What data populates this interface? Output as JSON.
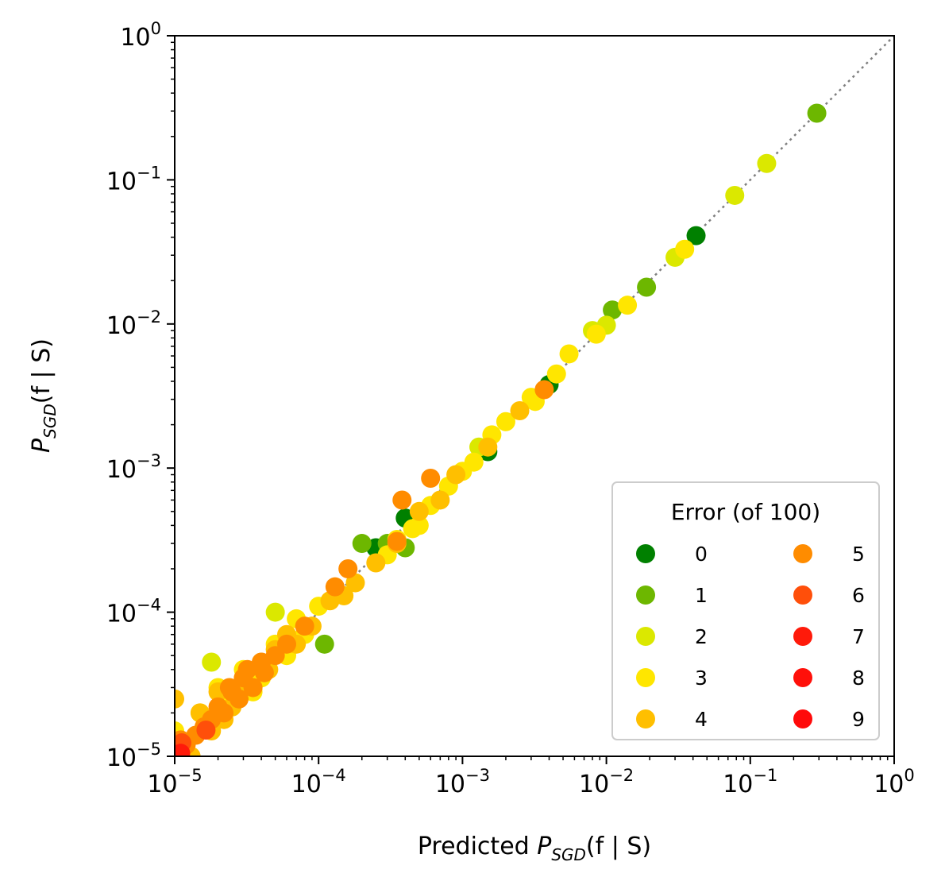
{
  "chart_data": {
    "type": "scatter",
    "xscale": "log",
    "yscale": "log",
    "xlim": [
      1e-05,
      1
    ],
    "ylim": [
      1e-05,
      1
    ],
    "xlabel": {
      "prefix": "Predicted ",
      "main": "P",
      "sub": "SGD",
      "suffix": "(f | S)"
    },
    "ylabel": {
      "prefix": "",
      "main": "P",
      "sub": "SGD",
      "suffix": "(f | S)"
    },
    "tick_labels": [
      {
        "base": "10",
        "exp": "−5"
      },
      {
        "base": "10",
        "exp": "−4"
      },
      {
        "base": "10",
        "exp": "−3"
      },
      {
        "base": "10",
        "exp": "−2"
      },
      {
        "base": "10",
        "exp": "−1"
      },
      {
        "base": "10",
        "exp": "0"
      }
    ],
    "reference_line": {
      "style": "dotted",
      "color": "#808080",
      "x": [
        1e-05,
        1
      ],
      "y": [
        1e-05,
        1
      ]
    },
    "legend": {
      "title": "Error (of 100)",
      "placement": "lower-right",
      "columns": 2,
      "entries": [
        {
          "label": "0",
          "color": "#008000"
        },
        {
          "label": "1",
          "color": "#6db700"
        },
        {
          "label": "2",
          "color": "#dbe800"
        },
        {
          "label": "3",
          "color": "#ffe600"
        },
        {
          "label": "4",
          "color": "#ffbf00"
        },
        {
          "label": "5",
          "color": "#ff8c00"
        },
        {
          "label": "6",
          "color": "#ff4f0a"
        },
        {
          "label": "7",
          "color": "#ff1a0a"
        },
        {
          "label": "8",
          "color": "#ff100a"
        },
        {
          "label": "9",
          "color": "#ff0a0a"
        }
      ]
    },
    "series": [
      {
        "label": "0",
        "x": [
          0.042,
          0.0015,
          0.0004,
          0.00025,
          0.004
        ],
        "y": [
          0.041,
          0.0013,
          0.00045,
          0.00028,
          0.0038
        ]
      },
      {
        "label": "1",
        "x": [
          0.29,
          0.019,
          0.011,
          0.0003,
          0.00011,
          0.0002,
          0.0004
        ],
        "y": [
          0.29,
          0.018,
          0.0125,
          0.0003,
          6e-05,
          0.0003,
          0.00028
        ]
      },
      {
        "label": "2",
        "x": [
          0.13,
          0.078,
          0.03,
          0.01,
          0.0013,
          5e-05,
          1.8e-05,
          0.008
        ],
        "y": [
          0.13,
          0.078,
          0.029,
          0.0098,
          0.0014,
          0.0001,
          4.5e-05,
          0.009
        ]
      },
      {
        "label": "3",
        "x": [
          0.035,
          0.014,
          0.0085,
          0.0055,
          0.0045,
          0.003,
          0.002,
          0.0016,
          0.001,
          0.0008,
          0.0006,
          0.0005,
          0.00035,
          0.0003,
          0.00015,
          0.0001,
          8e-05,
          6e-05,
          5e-05,
          4e-05,
          3e-05,
          2.5e-05,
          2e-05,
          1.5e-05,
          1e-05,
          0.0032,
          0.0012,
          0.00045,
          7e-05,
          3.5e-05
        ],
        "y": [
          0.033,
          0.0135,
          0.0085,
          0.0062,
          0.0045,
          0.0031,
          0.0021,
          0.0017,
          0.00095,
          0.00075,
          0.00055,
          0.0004,
          0.00032,
          0.00025,
          0.00013,
          0.00011,
          7e-05,
          5e-05,
          6e-05,
          3.5e-05,
          4e-05,
          2.5e-05,
          3e-05,
          2e-05,
          1.5e-05,
          0.0029,
          0.0011,
          0.00038,
          9e-05,
          2.8e-05
        ]
      },
      {
        "label": "4",
        "x": [
          0.0025,
          0.0015,
          0.0009,
          0.0007,
          0.0005,
          0.00035,
          0.00025,
          0.00018,
          0.00012,
          9e-05,
          7e-05,
          5e-05,
          4.5e-05,
          3.5e-05,
          3e-05,
          2.5e-05,
          2e-05,
          1.8e-05,
          1.5e-05,
          1.2e-05,
          1e-05,
          1.1e-05,
          1.3e-05,
          2.2e-05,
          2.8e-05,
          4e-05,
          6e-05,
          0.00015
        ],
        "y": [
          0.0025,
          0.0014,
          0.0009,
          0.0006,
          0.0005,
          0.0003,
          0.00022,
          0.00016,
          0.00012,
          8e-05,
          6e-05,
          5.5e-05,
          4e-05,
          3e-05,
          3.5e-05,
          2.2e-05,
          2.8e-05,
          1.5e-05,
          2e-05,
          1.2e-05,
          2.5e-05,
          1.1e-05,
          1e-05,
          1.8e-05,
          3e-05,
          4.5e-05,
          7e-05,
          0.00013
        ]
      },
      {
        "label": "5",
        "x": [
          0.0037,
          0.0006,
          0.00038,
          0.00035,
          0.00016,
          0.00013,
          8e-05,
          6e-05,
          5e-05,
          4e-05,
          3.5e-05,
          3e-05,
          2.8e-05,
          2.5e-05,
          2.2e-05,
          2e-05,
          1.8e-05,
          1.6e-05,
          1.4e-05,
          1.2e-05,
          1e-05,
          1.1e-05,
          2.4e-05,
          3.2e-05,
          4.2e-05
        ],
        "y": [
          0.0035,
          0.00085,
          0.0006,
          0.00031,
          0.0002,
          0.00015,
          8e-05,
          6e-05,
          5e-05,
          4.5e-05,
          3e-05,
          3.5e-05,
          2.5e-05,
          2.8e-05,
          2e-05,
          2.2e-05,
          1.8e-05,
          1.6e-05,
          1.4e-05,
          1.2e-05,
          1.1e-05,
          1.3e-05,
          3e-05,
          4e-05,
          3.8e-05
        ]
      },
      {
        "label": "6",
        "x": [
          1.65e-05,
          1.12e-05
        ],
        "y": [
          1.52e-05,
          1.24e-05
        ]
      },
      {
        "label": "7",
        "x": [
          1.1e-05
        ],
        "y": [
          1.05e-05
        ]
      },
      {
        "label": "8",
        "x": [],
        "y": []
      },
      {
        "label": "9",
        "x": [],
        "y": []
      }
    ]
  }
}
